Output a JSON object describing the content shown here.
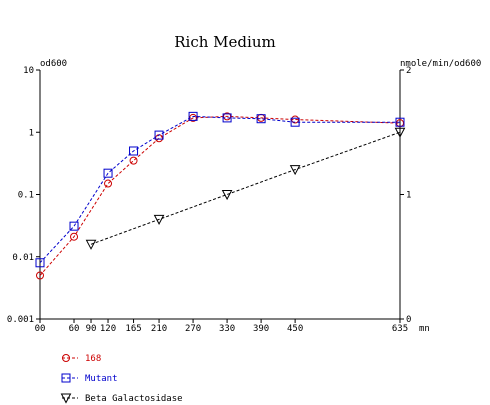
{
  "chart_data": {
    "type": "line",
    "title": "Rich Medium",
    "left_axis": {
      "label": "od600",
      "scale": "log",
      "range": [
        0.001,
        10
      ],
      "ticks": [
        10,
        1,
        0.1,
        0.01,
        0.001
      ],
      "tick_labels": [
        "10",
        "1",
        "0.1",
        "0.01",
        "0.001"
      ]
    },
    "right_axis": {
      "label": "nmole/min/od600",
      "scale": "linear",
      "range": [
        0,
        2
      ],
      "ticks": [
        2,
        1,
        0
      ],
      "tick_labels": [
        "2",
        "1",
        "0"
      ]
    },
    "x_axis": {
      "unit": "mn",
      "range": [
        0,
        635
      ],
      "ticks": [
        0,
        60,
        90,
        120,
        165,
        210,
        270,
        330,
        390,
        450,
        635
      ],
      "tick_labels": [
        "00",
        "60",
        "90",
        "120",
        "165",
        "210",
        "270",
        "330",
        "390",
        "450",
        "635"
      ]
    },
    "series": [
      {
        "name": "168",
        "axis": "left",
        "marker": "circle",
        "color": "#cc0000",
        "x": [
          0,
          60,
          120,
          165,
          210,
          270,
          330,
          390,
          450,
          635
        ],
        "y": [
          0.005,
          0.021,
          0.15,
          0.35,
          0.8,
          1.7,
          1.8,
          1.7,
          1.6,
          1.4
        ]
      },
      {
        "name": "Mutant",
        "axis": "left",
        "marker": "square",
        "color": "#0000cc",
        "x": [
          0,
          60,
          120,
          165,
          210,
          270,
          330,
          390,
          450,
          635
        ],
        "y": [
          0.008,
          0.031,
          0.22,
          0.5,
          0.9,
          1.8,
          1.7,
          1.65,
          1.45,
          1.45
        ]
      },
      {
        "name": "Beta Galactosidase",
        "axis": "right",
        "marker": "triangle-down",
        "color": "#000000",
        "x": [
          90,
          210,
          330,
          450,
          635
        ],
        "y": [
          0.6,
          0.8,
          1.0,
          1.2,
          1.5
        ]
      }
    ]
  }
}
